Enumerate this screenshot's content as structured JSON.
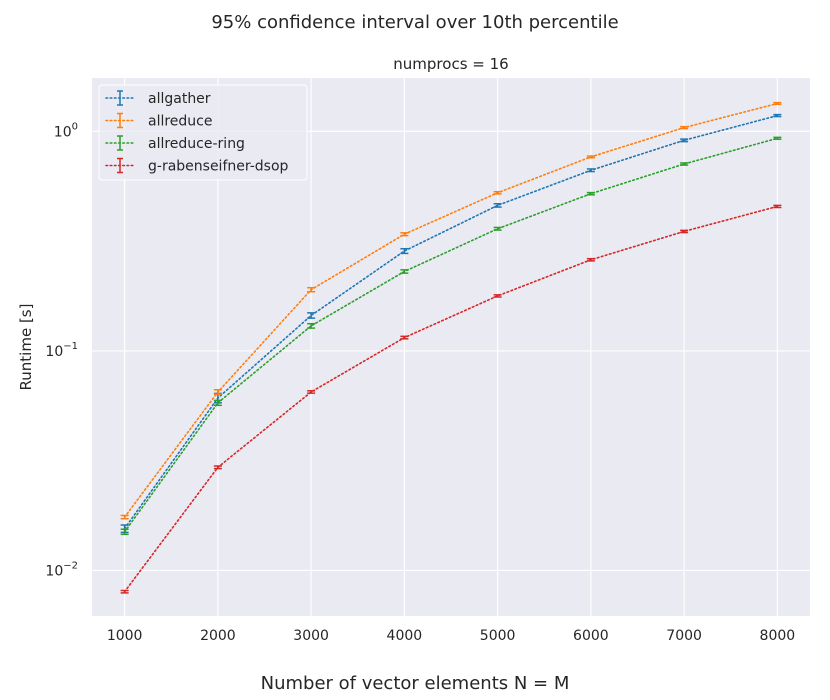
{
  "figure": {
    "suptitle": "95% confidence interval over 10th percentile",
    "supxlabel": "Number of vector elements N = M"
  },
  "chart_data": {
    "type": "line",
    "title": "numprocs = 16",
    "xlabel": "",
    "ylabel": "Runtime [s]",
    "yscale": "log",
    "xlim": [
      650,
      8350
    ],
    "ylim": [
      0.0062,
      1.75
    ],
    "xticks": [
      1000,
      2000,
      3000,
      4000,
      5000,
      6000,
      7000,
      8000
    ],
    "xtick_labels": [
      "1000",
      "2000",
      "3000",
      "4000",
      "5000",
      "6000",
      "7000",
      "8000"
    ],
    "yticks": [
      0.01,
      0.1,
      1
    ],
    "ytick_labels": [
      {
        "base": "10",
        "exp": "−2"
      },
      {
        "base": "10",
        "exp": "−1"
      },
      {
        "base": "10",
        "exp": "0"
      }
    ],
    "grid": true,
    "legend_position": "top-left",
    "background": "#eaeaf2",
    "gridcolor": "#ffffff",
    "x": [
      1000,
      2000,
      3000,
      4000,
      5000,
      6000,
      7000,
      8000
    ],
    "series": [
      {
        "name": "allgather",
        "color": "#1f77b4",
        "values": [
          0.0155,
          0.061,
          0.145,
          0.285,
          0.46,
          0.665,
          0.91,
          1.18
        ],
        "err": [
          0.0006,
          0.003,
          0.004,
          0.007,
          0.008,
          0.009,
          0.012,
          0.012
        ]
      },
      {
        "name": "allreduce",
        "color": "#ff7f0e",
        "values": [
          0.0175,
          0.065,
          0.19,
          0.34,
          0.525,
          0.765,
          1.04,
          1.34
        ],
        "err": [
          0.0003,
          0.0015,
          0.004,
          0.005,
          0.006,
          0.007,
          0.01,
          0.012
        ]
      },
      {
        "name": "allreduce-ring",
        "color": "#2ca02c",
        "values": [
          0.015,
          0.058,
          0.13,
          0.23,
          0.36,
          0.52,
          0.71,
          0.93
        ],
        "err": [
          0.0004,
          0.0015,
          0.003,
          0.004,
          0.005,
          0.006,
          0.008,
          0.009
        ]
      },
      {
        "name": "g-rabenseifner-dsop",
        "color": "#d62728",
        "values": [
          0.008,
          0.0295,
          0.065,
          0.115,
          0.178,
          0.26,
          0.35,
          0.455
        ],
        "err": [
          0.0001,
          0.0004,
          0.0008,
          0.0015,
          0.002,
          0.003,
          0.004,
          0.005
        ]
      }
    ]
  }
}
